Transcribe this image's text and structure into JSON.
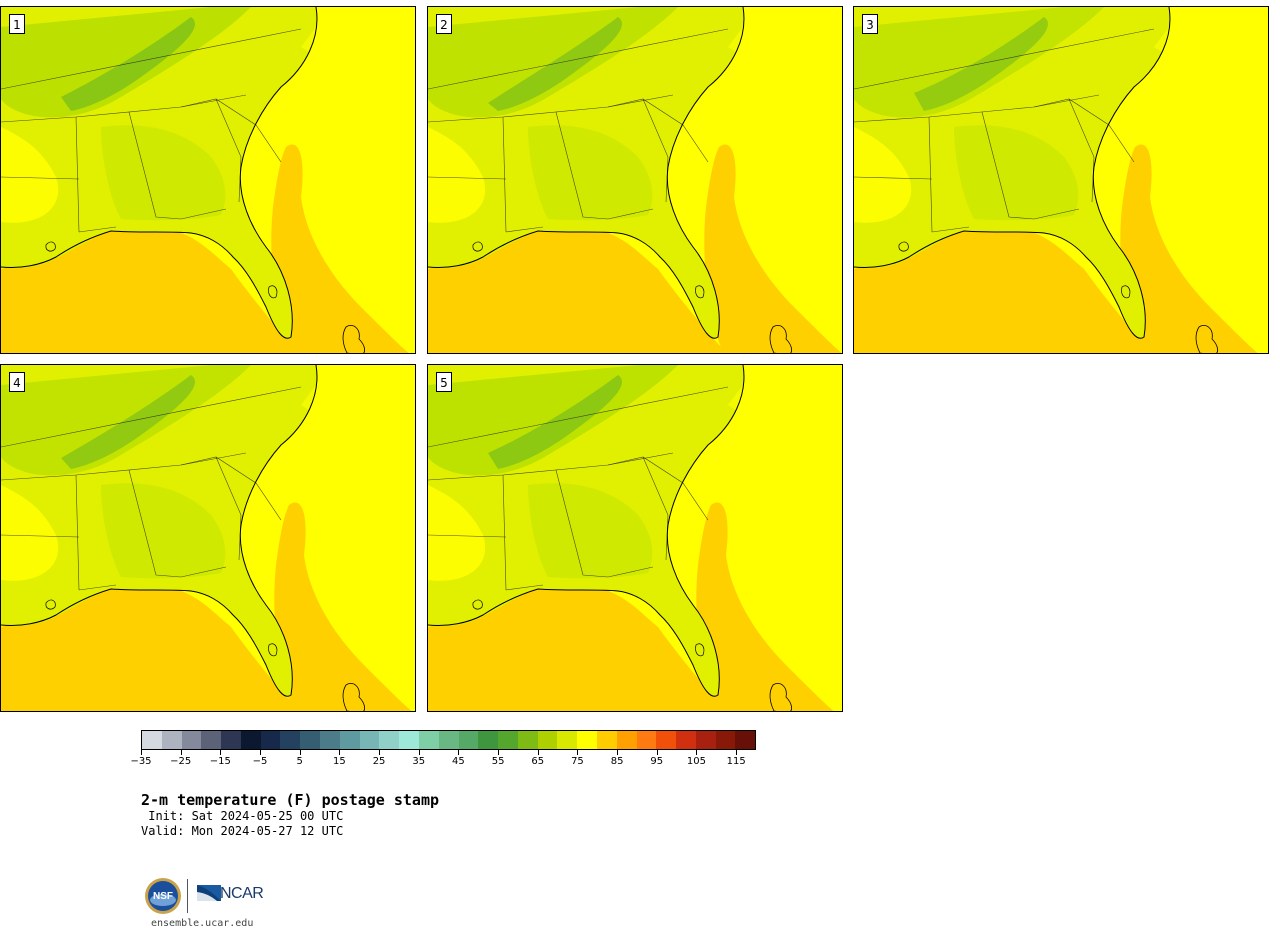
{
  "panels": [
    {
      "label": "1"
    },
    {
      "label": "2"
    },
    {
      "label": "3"
    },
    {
      "label": "4"
    },
    {
      "label": "5"
    }
  ],
  "colorbar": {
    "colors": [
      "#d5d9e0",
      "#aeb3c0",
      "#848a9c",
      "#5c6378",
      "#2d3652",
      "#0c1730",
      "#17294a",
      "#24425f",
      "#355e73",
      "#4c7c89",
      "#5f9aa1",
      "#77b6b5",
      "#8fd0c8",
      "#9ee8d8",
      "#7fcfa6",
      "#69b883",
      "#55a866",
      "#3e963f",
      "#55a62c",
      "#7ebb14",
      "#afd000",
      "#d9e800",
      "#ffff00",
      "#ffcc00",
      "#ffa000",
      "#ff7a10",
      "#f0500a",
      "#d03010",
      "#a82010",
      "#881808",
      "#661008"
    ],
    "tick_labels": [
      "−35",
      "−25",
      "−15",
      "−5",
      "5",
      "15",
      "25",
      "35",
      "45",
      "55",
      "65",
      "75",
      "85",
      "95",
      "105",
      "115"
    ],
    "map_colors": {
      "land_warm": "#ffff00",
      "land_mild": "#e1f000",
      "land_cool": "#bce000",
      "land_cold": "#8ac614",
      "ocean": "#ffd000"
    }
  },
  "title": "2-m temperature (F) postage stamp",
  "init": " Init: Sat 2024-05-25 00 UTC",
  "valid": "Valid: Mon 2024-05-27 12 UTC",
  "footer": {
    "site": "ensemble.ucar.edu",
    "org_logo_text": "NCAR",
    "nsf_logo_text": "NSF"
  }
}
